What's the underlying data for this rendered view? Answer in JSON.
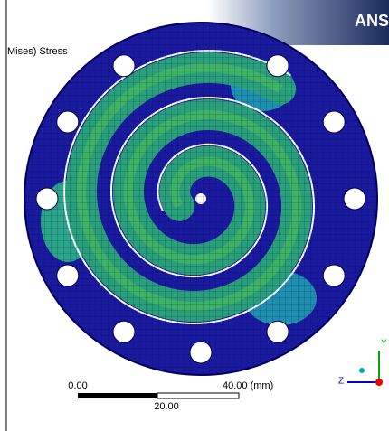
{
  "header": {
    "logo": "ANS",
    "result_label": "Mises) Stress"
  },
  "scale_bar": {
    "start": "0.00",
    "mid": "20.00",
    "end": "40.00 (mm)"
  },
  "triad": {
    "y": "Y",
    "z": "Z"
  }
}
